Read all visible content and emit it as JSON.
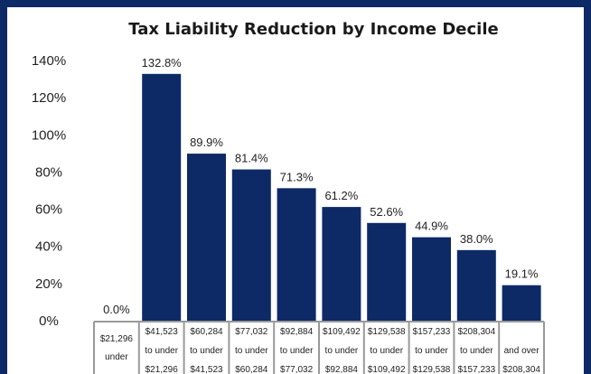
{
  "chart_data": {
    "type": "bar",
    "title": "Tax Liability Reduction by Income Decile",
    "xlabel": "",
    "ylabel": "",
    "ylim": [
      0,
      140
    ],
    "yticks": [
      "0%",
      "20%",
      "40%",
      "60%",
      "80%",
      "100%",
      "120%",
      "140%"
    ],
    "grid": false,
    "bar_color": "#0d2a66",
    "categories": [
      [
        "$21,296",
        "under"
      ],
      [
        "$41,523",
        "to under",
        "$21,296"
      ],
      [
        "$60,284",
        "to under",
        "$41,523"
      ],
      [
        "$77,032",
        "to under",
        "$60,284"
      ],
      [
        "$92,884",
        "to under",
        "$77,032"
      ],
      [
        "$109,492",
        "to under",
        "$92,884"
      ],
      [
        "$129,538",
        "to under",
        "$109,492"
      ],
      [
        "$157,233",
        "to under",
        "$129,538"
      ],
      [
        "$208,304",
        "to under",
        "$157,233"
      ],
      [
        "",
        "and over",
        "$208,304"
      ]
    ],
    "values": [
      0.0,
      132.8,
      89.9,
      81.4,
      71.3,
      61.2,
      52.6,
      44.9,
      38.0,
      19.1
    ],
    "data_labels": [
      "0.0%",
      "132.8%",
      "89.9%",
      "81.4%",
      "71.3%",
      "61.2%",
      "52.6%",
      "44.9%",
      "38.0%",
      "19.1%"
    ]
  }
}
